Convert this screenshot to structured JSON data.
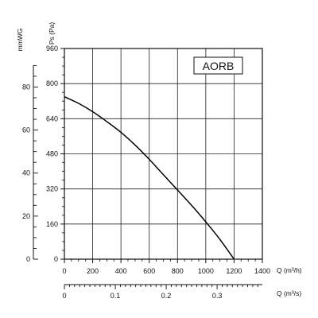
{
  "chart_data": {
    "type": "line",
    "title": "",
    "label_box": "AORB",
    "y_left_unit": "mmWG",
    "y_unit": "Ps (Pa)",
    "x_unit": "Q (m³/h)",
    "x2_unit": "Q (m³/s)",
    "xlim": [
      0,
      1400
    ],
    "ylim": [
      0,
      960
    ],
    "x_ticks": [
      0,
      200,
      400,
      600,
      800,
      1000,
      1200,
      1400
    ],
    "y_ticks": [
      0,
      160,
      320,
      480,
      640,
      800,
      960
    ],
    "mmwg_ticks": [
      0,
      20,
      40,
      60,
      80
    ],
    "m3s_ticks": [
      "0",
      "0.1",
      "0.2",
      "0.3"
    ],
    "m3s_tick_values": [
      0,
      0.1,
      0.2,
      0.3
    ],
    "grid": true,
    "series": [
      {
        "x": [
          0,
          100,
          200,
          300,
          400,
          500,
          600,
          700,
          800,
          900,
          1000,
          1100,
          1200
        ],
        "y": [
          740,
          710,
          672,
          627,
          578,
          520,
          455,
          385,
          315,
          245,
          170,
          90,
          0
        ]
      }
    ]
  }
}
